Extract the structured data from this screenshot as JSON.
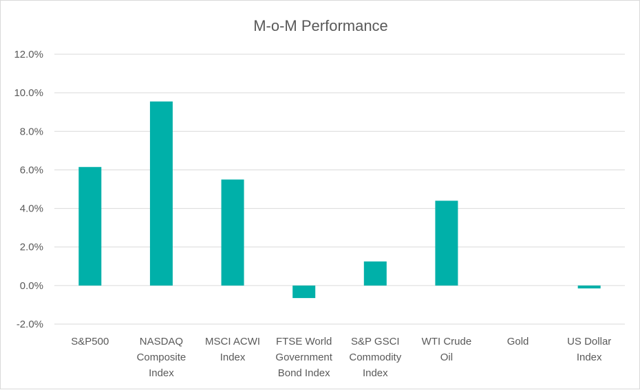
{
  "chart_data": {
    "type": "bar",
    "title": "M-o-M Performance",
    "xlabel": "",
    "ylabel": "",
    "categories": [
      [
        "S&P500"
      ],
      [
        "NASDAQ",
        "Composite",
        "Index"
      ],
      [
        "MSCI ACWI",
        "Index"
      ],
      [
        "FTSE World",
        "Government",
        "Bond Index"
      ],
      [
        "S&P GSCI",
        "Commodity",
        "Index"
      ],
      [
        "WTI Crude",
        "Oil"
      ],
      [
        "Gold"
      ],
      [
        "US Dollar",
        "Index"
      ]
    ],
    "values": [
      6.15,
      9.55,
      5.5,
      -0.65,
      1.25,
      4.4,
      0.0,
      -0.15
    ],
    "yticks": [
      "-2.0%",
      "0.0%",
      "2.0%",
      "4.0%",
      "6.0%",
      "8.0%",
      "10.0%",
      "12.0%"
    ],
    "ylim": [
      -2,
      12
    ],
    "grid": true,
    "legend": "none",
    "bar_color": "#00b0a9"
  }
}
